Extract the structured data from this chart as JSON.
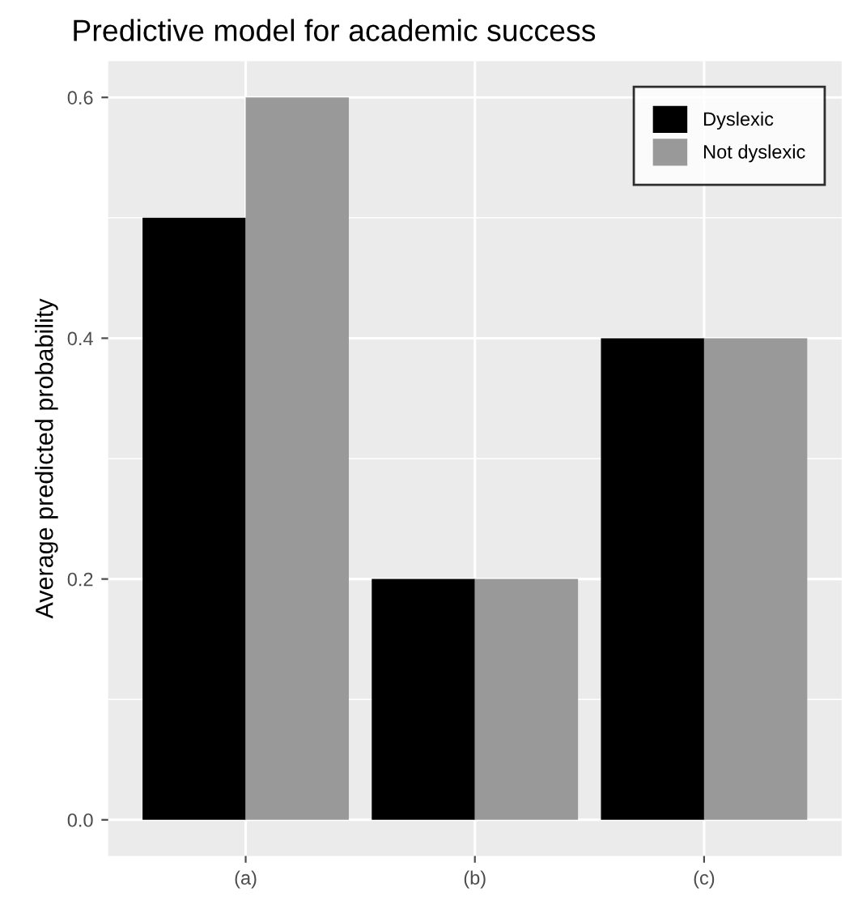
{
  "chart_data": {
    "type": "bar",
    "title": "Predictive model for academic success",
    "ylabel": "Average predicted probability",
    "categories": [
      "(a)",
      "(b)",
      "(c)"
    ],
    "series": [
      {
        "name": "Dyslexic",
        "color": "#000000",
        "values": [
          0.5,
          0.2,
          0.4
        ]
      },
      {
        "name": "Not dyslexic",
        "color": "#999999",
        "values": [
          0.6,
          0.2,
          0.4
        ]
      }
    ],
    "ylim": [
      -0.03,
      0.63
    ],
    "yticks": [
      {
        "value": 0,
        "label": "0.0"
      },
      {
        "value": 0.2,
        "label": "0.2"
      },
      {
        "value": 0.4,
        "label": "0.4"
      },
      {
        "value": 0.6,
        "label": "0.6"
      }
    ],
    "grid": true,
    "legend": "top right"
  }
}
